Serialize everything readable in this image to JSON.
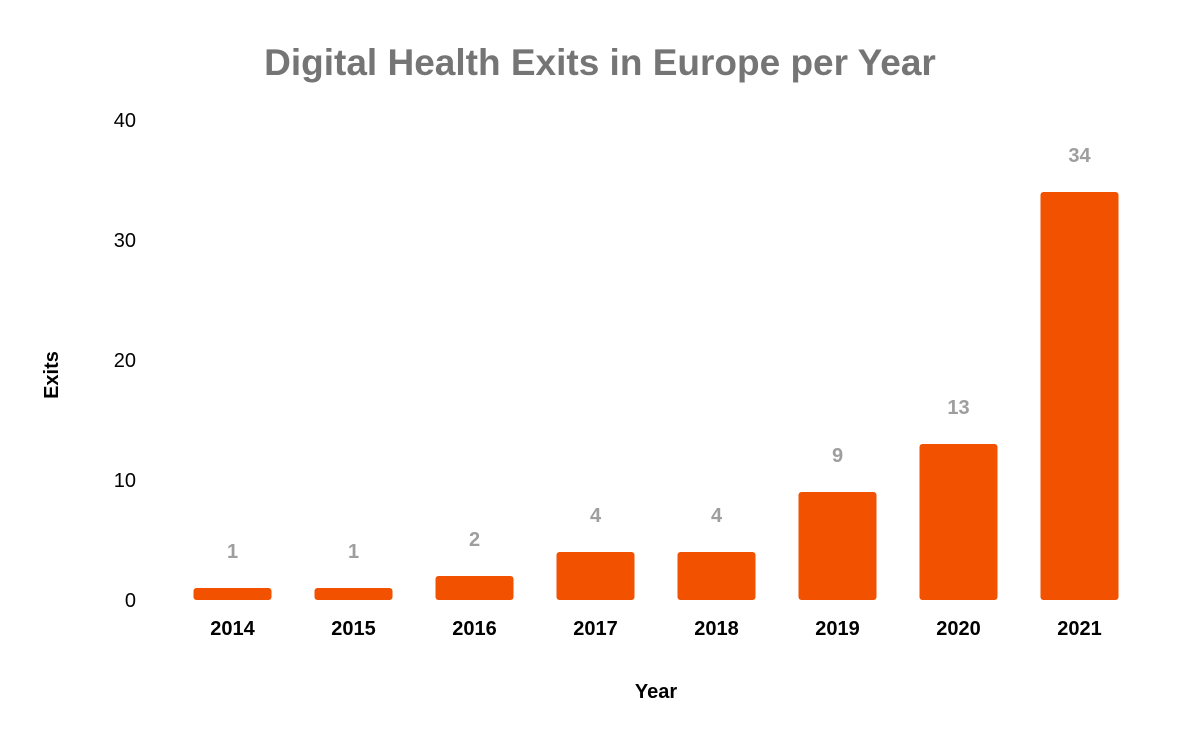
{
  "chart_data": {
    "type": "bar",
    "title": "Digital Health Exits in Europe per Year",
    "xlabel": "Year",
    "ylabel": "Exits",
    "categories": [
      "2014",
      "2015",
      "2016",
      "2017",
      "2018",
      "2019",
      "2020",
      "2021"
    ],
    "values": [
      1,
      1,
      2,
      4,
      4,
      9,
      13,
      34
    ],
    "data_labels": [
      "1",
      "1",
      "2",
      "4",
      "4",
      "9",
      "13",
      "34"
    ],
    "ylim": [
      0,
      40
    ],
    "yticks": [
      0,
      10,
      20,
      30,
      40
    ],
    "ytick_labels": [
      "0",
      "10",
      "20",
      "30",
      "40"
    ],
    "grid": false,
    "legend": "none",
    "bar_color": "#f25100",
    "data_label_color": "#9e9e9e",
    "title_color": "#757575"
  }
}
